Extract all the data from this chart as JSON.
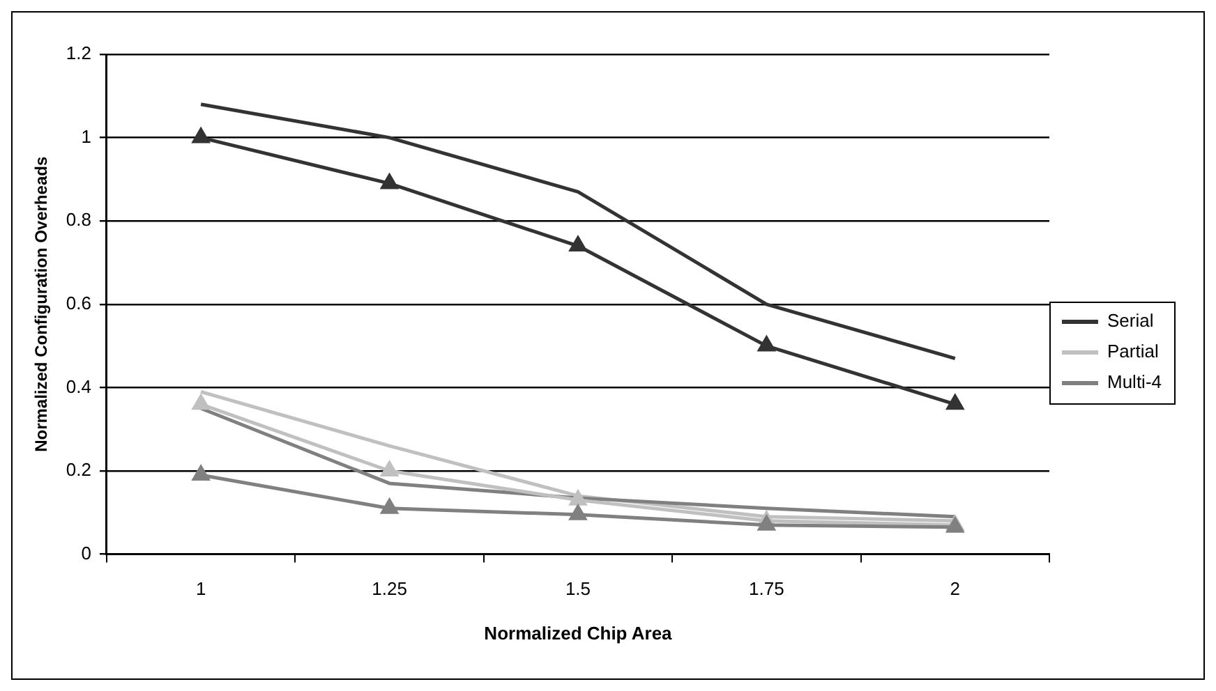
{
  "chart_data": {
    "type": "line",
    "xlabel": "Normalized Chip Area",
    "ylabel": "Normalized Configuration Overheads",
    "categories": [
      "1",
      "1.25",
      "1.5",
      "1.75",
      "2"
    ],
    "series": [
      {
        "name": "Serial",
        "color": "#333333",
        "marker": "none",
        "values": [
          1.08,
          1.0,
          0.87,
          0.6,
          0.47
        ]
      },
      {
        "name": "Partial",
        "color": "#c0c0c0",
        "marker": "none",
        "values": [
          0.39,
          0.26,
          0.14,
          0.09,
          0.08
        ]
      },
      {
        "name": "Multi-4",
        "color": "#808080",
        "marker": "none",
        "values": [
          0.35,
          0.17,
          0.135,
          0.11,
          0.09
        ]
      },
      {
        "color": "#333333",
        "marker": "triangle",
        "values": [
          1.0,
          0.89,
          0.74,
          0.5,
          0.36
        ]
      },
      {
        "color": "#c0c0c0",
        "marker": "triangle",
        "values": [
          0.36,
          0.2,
          0.13,
          0.08,
          0.07
        ]
      },
      {
        "color": "#808080",
        "marker": "triangle",
        "values": [
          0.19,
          0.11,
          0.095,
          0.07,
          0.065
        ]
      }
    ],
    "ylim": [
      0,
      1.2
    ],
    "yticks": [
      0,
      0.2,
      0.4,
      0.6,
      0.8,
      1,
      1.2
    ],
    "grid": "y",
    "legend": "right"
  }
}
